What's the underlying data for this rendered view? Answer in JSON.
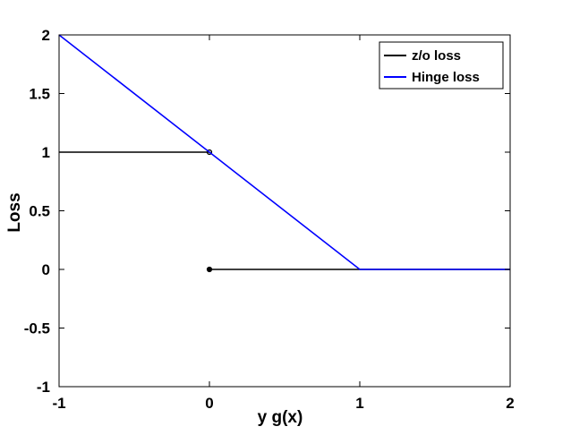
{
  "chart_data": {
    "type": "line",
    "xlabel": "y g(x)",
    "ylabel": "Loss",
    "xlim": [
      -1,
      2
    ],
    "ylim": [
      -1,
      2
    ],
    "xticks": [
      "-1",
      "0",
      "1",
      "2"
    ],
    "yticks": [
      "2",
      "1.5",
      "1",
      "0.5",
      "0",
      "-0.5",
      "-1"
    ],
    "grid": false,
    "legend_position": "top-right",
    "series": [
      {
        "name": "z/o loss",
        "color": "#000000",
        "segments": [
          {
            "x": [
              -1,
              0
            ],
            "y": [
              1,
              1
            ]
          },
          {
            "x": [
              0,
              2
            ],
            "y": [
              0,
              0
            ]
          }
        ],
        "markers": [
          {
            "x": 0,
            "y": 1,
            "style": "open"
          },
          {
            "x": 0,
            "y": 0,
            "style": "filled"
          }
        ]
      },
      {
        "name": "Hinge loss",
        "color": "#0000ff",
        "segments": [
          {
            "x": [
              -1,
              1,
              2
            ],
            "y": [
              2,
              0,
              0
            ]
          }
        ],
        "markers": []
      }
    ]
  }
}
